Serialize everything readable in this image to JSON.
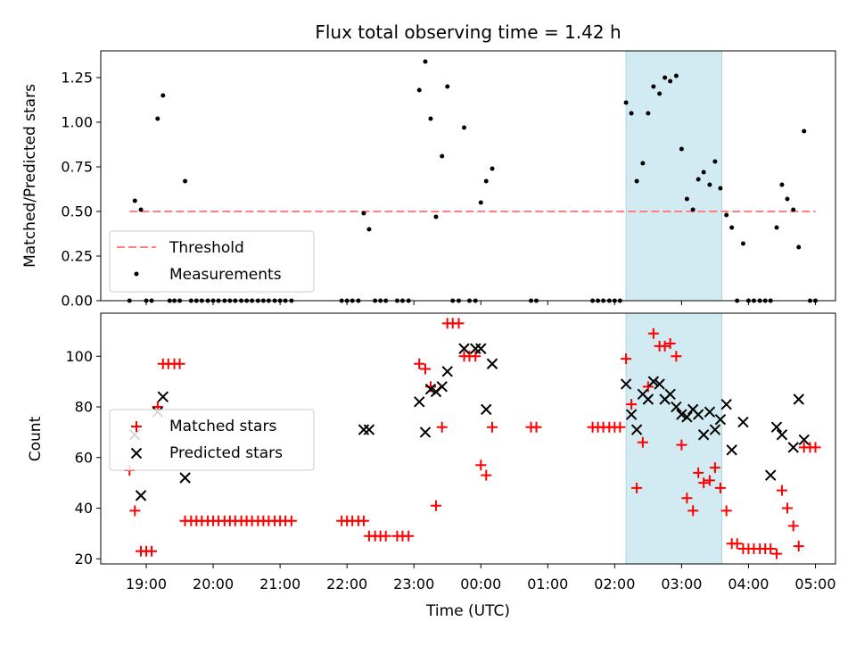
{
  "figure": {
    "title": "Flux total observing time = 1.42 h"
  },
  "chart_data": [
    {
      "type": "scatter",
      "title": "Flux total observing time = 1.42 h",
      "xlabel": "",
      "ylabel": "Matched/Predicted stars",
      "x_unit": "hours after 18:00 UTC",
      "xlim": [
        0.32,
        11.3
      ],
      "ylim": [
        0.0,
        1.4
      ],
      "xticks": [
        1,
        2,
        3,
        4,
        5,
        6,
        7,
        8,
        9,
        10,
        11
      ],
      "xtick_labels": [
        "19:00",
        "20:00",
        "21:00",
        "22:00",
        "23:00",
        "00:00",
        "01:00",
        "02:00",
        "03:00",
        "04:00",
        "05:00"
      ],
      "yticks": [
        0.0,
        0.25,
        0.5,
        0.75,
        1.0,
        1.25
      ],
      "ytick_labels": [
        "0.00",
        "0.25",
        "0.50",
        "0.75",
        "1.00",
        "1.25"
      ],
      "highlight_span": {
        "x0": 8.17,
        "x1": 9.6,
        "color": "#add8e6"
      },
      "threshold": {
        "name": "Threshold",
        "y": 0.5,
        "x0": 0.75,
        "x1": 11.0,
        "color": "#ff7f7f",
        "style": "dashed"
      },
      "legend": {
        "placement": "lower-left",
        "entries": [
          "Threshold",
          "Measurements"
        ]
      },
      "series": [
        {
          "name": "Measurements",
          "color": "#000000",
          "marker": "dot",
          "points": [
            [
              0.75,
              0.0
            ],
            [
              0.83,
              0.56
            ],
            [
              0.92,
              0.51
            ],
            [
              1.0,
              0.0
            ],
            [
              1.08,
              0.0
            ],
            [
              1.17,
              1.02
            ],
            [
              1.25,
              1.15
            ],
            [
              1.35,
              0.0
            ],
            [
              1.42,
              0.0
            ],
            [
              1.5,
              0.0
            ],
            [
              1.58,
              0.67
            ],
            [
              1.67,
              0.0
            ],
            [
              1.75,
              0.0
            ],
            [
              1.83,
              0.0
            ],
            [
              1.92,
              0.0
            ],
            [
              2.0,
              0.0
            ],
            [
              2.08,
              0.0
            ],
            [
              2.17,
              0.0
            ],
            [
              2.25,
              0.0
            ],
            [
              2.33,
              0.0
            ],
            [
              2.42,
              0.0
            ],
            [
              2.5,
              0.0
            ],
            [
              2.58,
              0.0
            ],
            [
              2.67,
              0.0
            ],
            [
              2.75,
              0.0
            ],
            [
              2.83,
              0.0
            ],
            [
              2.92,
              0.0
            ],
            [
              3.0,
              0.0
            ],
            [
              3.08,
              0.0
            ],
            [
              3.17,
              0.0
            ],
            [
              3.92,
              0.0
            ],
            [
              4.0,
              0.0
            ],
            [
              4.08,
              0.0
            ],
            [
              4.17,
              0.0
            ],
            [
              4.25,
              0.49
            ],
            [
              4.33,
              0.4
            ],
            [
              4.42,
              0.0
            ],
            [
              4.5,
              0.0
            ],
            [
              4.58,
              0.0
            ],
            [
              4.75,
              0.0
            ],
            [
              4.83,
              0.0
            ],
            [
              4.92,
              0.0
            ],
            [
              5.08,
              1.18
            ],
            [
              5.17,
              1.34
            ],
            [
              5.25,
              1.02
            ],
            [
              5.33,
              0.47
            ],
            [
              5.42,
              0.81
            ],
            [
              5.5,
              1.2
            ],
            [
              5.58,
              0.0
            ],
            [
              5.67,
              0.0
            ],
            [
              5.75,
              0.97
            ],
            [
              5.83,
              0.0
            ],
            [
              5.92,
              0.0
            ],
            [
              6.0,
              0.55
            ],
            [
              6.08,
              0.67
            ],
            [
              6.17,
              0.74
            ],
            [
              6.75,
              0.0
            ],
            [
              6.83,
              0.0
            ],
            [
              7.67,
              0.0
            ],
            [
              7.75,
              0.0
            ],
            [
              7.83,
              0.0
            ],
            [
              7.92,
              0.0
            ],
            [
              8.0,
              0.0
            ],
            [
              8.08,
              0.0
            ],
            [
              8.17,
              1.11
            ],
            [
              8.25,
              1.05
            ],
            [
              8.33,
              0.67
            ],
            [
              8.42,
              0.77
            ],
            [
              8.5,
              1.05
            ],
            [
              8.58,
              1.2
            ],
            [
              8.67,
              1.16
            ],
            [
              8.75,
              1.25
            ],
            [
              8.83,
              1.23
            ],
            [
              8.92,
              1.26
            ],
            [
              9.0,
              0.85
            ],
            [
              9.08,
              0.57
            ],
            [
              9.17,
              0.51
            ],
            [
              9.25,
              0.68
            ],
            [
              9.33,
              0.72
            ],
            [
              9.42,
              0.65
            ],
            [
              9.5,
              0.78
            ],
            [
              9.58,
              0.63
            ],
            [
              9.67,
              0.48
            ],
            [
              9.75,
              0.41
            ],
            [
              9.83,
              0.0
            ],
            [
              9.92,
              0.32
            ],
            [
              10.0,
              0.0
            ],
            [
              10.08,
              0.0
            ],
            [
              10.17,
              0.0
            ],
            [
              10.25,
              0.0
            ],
            [
              10.33,
              0.0
            ],
            [
              10.42,
              0.41
            ],
            [
              10.5,
              0.65
            ],
            [
              10.58,
              0.57
            ],
            [
              10.67,
              0.51
            ],
            [
              10.75,
              0.3
            ],
            [
              10.83,
              0.95
            ],
            [
              10.92,
              0.0
            ],
            [
              11.0,
              0.0
            ]
          ]
        }
      ]
    },
    {
      "type": "scatter",
      "title": "",
      "xlabel": "Time (UTC)",
      "ylabel": "Count",
      "x_unit": "hours after 18:00 UTC",
      "xlim": [
        0.32,
        11.3
      ],
      "ylim": [
        18,
        117
      ],
      "xticks": [
        1,
        2,
        3,
        4,
        5,
        6,
        7,
        8,
        9,
        10,
        11
      ],
      "xtick_labels": [
        "19:00",
        "20:00",
        "21:00",
        "22:00",
        "23:00",
        "00:00",
        "01:00",
        "02:00",
        "03:00",
        "04:00",
        "05:00"
      ],
      "yticks": [
        20,
        40,
        60,
        80,
        100
      ],
      "ytick_labels": [
        "20",
        "40",
        "60",
        "80",
        "100"
      ],
      "highlight_span": {
        "x0": 8.17,
        "x1": 9.6,
        "color": "#add8e6"
      },
      "legend": {
        "placement": "center-left",
        "entries": [
          "Matched stars",
          "Predicted stars"
        ]
      },
      "series": [
        {
          "name": "Matched stars",
          "color": "#ff0000",
          "marker": "plus",
          "points": [
            [
              0.75,
              55
            ],
            [
              0.83,
              39
            ],
            [
              0.92,
              23
            ],
            [
              1.0,
              23
            ],
            [
              1.08,
              23
            ],
            [
              1.17,
              80
            ],
            [
              1.25,
              97
            ],
            [
              1.33,
              97
            ],
            [
              1.42,
              97
            ],
            [
              1.5,
              97
            ],
            [
              1.58,
              35
            ],
            [
              1.67,
              35
            ],
            [
              1.75,
              35
            ],
            [
              1.83,
              35
            ],
            [
              1.92,
              35
            ],
            [
              2.0,
              35
            ],
            [
              2.08,
              35
            ],
            [
              2.17,
              35
            ],
            [
              2.25,
              35
            ],
            [
              2.33,
              35
            ],
            [
              2.42,
              35
            ],
            [
              2.5,
              35
            ],
            [
              2.58,
              35
            ],
            [
              2.67,
              35
            ],
            [
              2.75,
              35
            ],
            [
              2.83,
              35
            ],
            [
              2.92,
              35
            ],
            [
              3.0,
              35
            ],
            [
              3.08,
              35
            ],
            [
              3.17,
              35
            ],
            [
              3.92,
              35
            ],
            [
              4.0,
              35
            ],
            [
              4.08,
              35
            ],
            [
              4.17,
              35
            ],
            [
              4.25,
              35
            ],
            [
              4.33,
              29
            ],
            [
              4.42,
              29
            ],
            [
              4.5,
              29
            ],
            [
              4.58,
              29
            ],
            [
              4.75,
              29
            ],
            [
              4.83,
              29
            ],
            [
              4.92,
              29
            ],
            [
              5.08,
              97
            ],
            [
              5.17,
              95
            ],
            [
              5.25,
              88
            ],
            [
              5.33,
              41
            ],
            [
              5.42,
              72
            ],
            [
              5.5,
              113
            ],
            [
              5.58,
              113
            ],
            [
              5.67,
              113
            ],
            [
              5.75,
              100
            ],
            [
              5.83,
              100
            ],
            [
              5.92,
              100
            ],
            [
              6.0,
              57
            ],
            [
              6.08,
              53
            ],
            [
              6.17,
              72
            ],
            [
              6.75,
              72
            ],
            [
              6.83,
              72
            ],
            [
              7.67,
              72
            ],
            [
              7.75,
              72
            ],
            [
              7.83,
              72
            ],
            [
              7.92,
              72
            ],
            [
              8.0,
              72
            ],
            [
              8.08,
              72
            ],
            [
              8.17,
              99
            ],
            [
              8.25,
              81
            ],
            [
              8.33,
              48
            ],
            [
              8.42,
              66
            ],
            [
              8.5,
              88
            ],
            [
              8.58,
              109
            ],
            [
              8.67,
              104
            ],
            [
              8.75,
              104
            ],
            [
              8.83,
              105
            ],
            [
              8.92,
              100
            ],
            [
              9.0,
              65
            ],
            [
              9.08,
              44
            ],
            [
              9.17,
              39
            ],
            [
              9.25,
              54
            ],
            [
              9.33,
              50
            ],
            [
              9.42,
              51
            ],
            [
              9.5,
              56
            ],
            [
              9.58,
              48
            ],
            [
              9.67,
              39
            ],
            [
              9.75,
              26
            ],
            [
              9.83,
              26
            ],
            [
              9.92,
              24
            ],
            [
              10.0,
              24
            ],
            [
              10.08,
              24
            ],
            [
              10.17,
              24
            ],
            [
              10.25,
              24
            ],
            [
              10.33,
              24
            ],
            [
              10.42,
              22
            ],
            [
              10.5,
              47
            ],
            [
              10.58,
              40
            ],
            [
              10.67,
              33
            ],
            [
              10.75,
              25
            ],
            [
              10.83,
              64
            ],
            [
              10.92,
              64
            ],
            [
              11.0,
              64
            ]
          ]
        },
        {
          "name": "Predicted stars",
          "color": "#000000",
          "marker": "x",
          "points": [
            [
              0.83,
              69
            ],
            [
              0.92,
              45
            ],
            [
              1.17,
              78
            ],
            [
              1.25,
              84
            ],
            [
              1.58,
              52
            ],
            [
              4.25,
              71
            ],
            [
              4.33,
              71
            ],
            [
              5.08,
              82
            ],
            [
              5.17,
              70
            ],
            [
              5.25,
              87
            ],
            [
              5.33,
              86
            ],
            [
              5.42,
              88
            ],
            [
              5.5,
              94
            ],
            [
              5.75,
              103
            ],
            [
              5.92,
              103
            ],
            [
              6.0,
              103
            ],
            [
              6.08,
              79
            ],
            [
              6.17,
              97
            ],
            [
              8.17,
              89
            ],
            [
              8.25,
              77
            ],
            [
              8.33,
              71
            ],
            [
              8.42,
              85
            ],
            [
              8.5,
              83
            ],
            [
              8.58,
              90
            ],
            [
              8.67,
              89
            ],
            [
              8.75,
              83
            ],
            [
              8.83,
              85
            ],
            [
              8.92,
              80
            ],
            [
              9.0,
              77
            ],
            [
              9.08,
              76
            ],
            [
              9.17,
              79
            ],
            [
              9.25,
              77
            ],
            [
              9.33,
              69
            ],
            [
              9.42,
              78
            ],
            [
              9.5,
              71
            ],
            [
              9.58,
              75
            ],
            [
              9.67,
              81
            ],
            [
              9.75,
              63
            ],
            [
              9.92,
              74
            ],
            [
              10.33,
              53
            ],
            [
              10.42,
              72
            ],
            [
              10.5,
              69
            ],
            [
              10.67,
              64
            ],
            [
              10.75,
              83
            ],
            [
              10.83,
              67
            ]
          ]
        }
      ]
    }
  ]
}
